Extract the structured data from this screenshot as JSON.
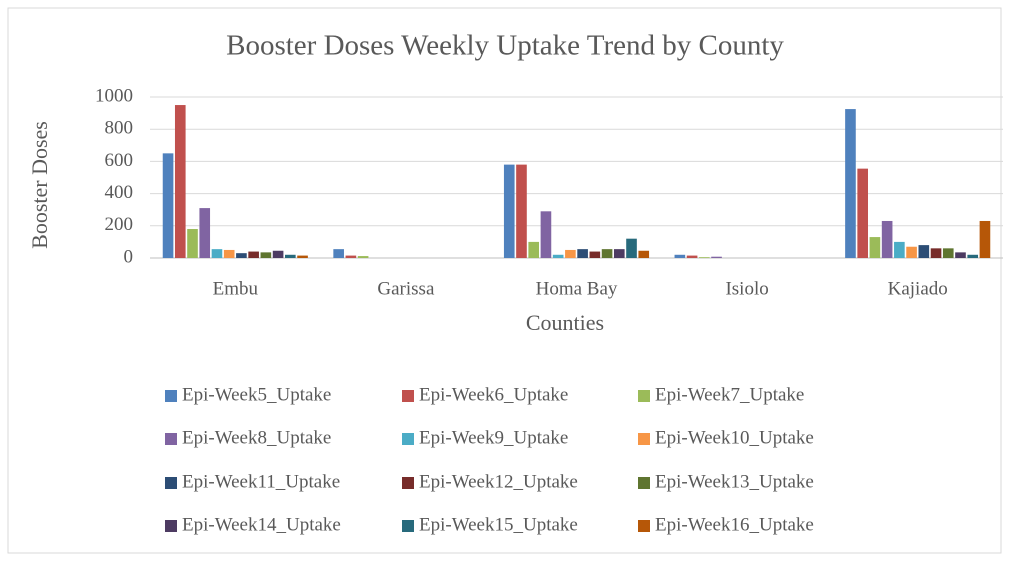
{
  "chart_data": {
    "type": "bar",
    "title": "Booster Doses Weekly Uptake Trend by County",
    "x_label": "Counties",
    "y_label": "Booster Doses",
    "categories": [
      "Embu",
      "Garissa",
      "Homa Bay",
      "Isiolo",
      "Kajiado"
    ],
    "ylim": [
      0,
      1000
    ],
    "yticks": [
      0,
      200,
      400,
      600,
      800,
      1000
    ],
    "grid": true,
    "legend": "bottom",
    "series": [
      {
        "name": "Epi-Week5_Uptake",
        "color": "#4f81bd",
        "values": [
          650,
          55,
          580,
          20,
          925
        ]
      },
      {
        "name": "Epi-Week6_Uptake",
        "color": "#c0504d",
        "values": [
          950,
          15,
          580,
          15,
          555
        ]
      },
      {
        "name": "Epi-Week7_Uptake",
        "color": "#9bbb59",
        "values": [
          180,
          12,
          100,
          5,
          130
        ]
      },
      {
        "name": "Epi-Week8_Uptake",
        "color": "#8064a2",
        "values": [
          310,
          0,
          290,
          8,
          230
        ]
      },
      {
        "name": "Epi-Week9_Uptake",
        "color": "#4bacc6",
        "values": [
          55,
          0,
          20,
          0,
          100
        ]
      },
      {
        "name": "Epi-Week10_Uptake",
        "color": "#f79646",
        "values": [
          50,
          0,
          50,
          0,
          70
        ]
      },
      {
        "name": "Epi-Week11_Uptake",
        "color": "#2c4d75",
        "values": [
          30,
          0,
          55,
          0,
          80
        ]
      },
      {
        "name": "Epi-Week12_Uptake",
        "color": "#772c2a",
        "values": [
          40,
          0,
          40,
          0,
          60
        ]
      },
      {
        "name": "Epi-Week13_Uptake",
        "color": "#5f7530",
        "values": [
          35,
          0,
          55,
          0,
          60
        ]
      },
      {
        "name": "Epi-Week14_Uptake",
        "color": "#4d3b62",
        "values": [
          45,
          0,
          55,
          0,
          35
        ]
      },
      {
        "name": "Epi-Week15_Uptake",
        "color": "#276a7c",
        "values": [
          20,
          0,
          120,
          0,
          20
        ]
      },
      {
        "name": "Epi-Week16_Uptake",
        "color": "#b65708",
        "values": [
          15,
          0,
          45,
          0,
          230
        ]
      }
    ]
  }
}
